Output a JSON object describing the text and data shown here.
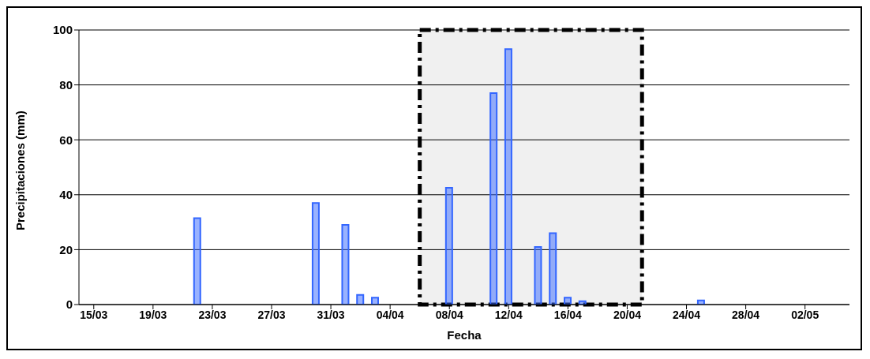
{
  "chart_data": {
    "type": "bar",
    "xlabel": "Fecha",
    "ylabel": "Precipitaciones (mm)",
    "x": [
      "--03-15",
      "--03-16",
      "--03-17",
      "--03-18",
      "--03-19",
      "--03-20",
      "--03-21",
      "--03-22",
      "--03-23",
      "--03-24",
      "--03-25",
      "--03-26",
      "--03-27",
      "--03-28",
      "--03-29",
      "--03-30",
      "--03-31",
      "--04-01",
      "--04-02",
      "--04-03",
      "--04-04",
      "--04-05",
      "--04-06",
      "--04-07",
      "--04-08",
      "--04-09",
      "--04-10",
      "--04-11",
      "--04-12",
      "--04-13",
      "--04-14",
      "--04-15",
      "--04-16",
      "--04-17",
      "--04-18",
      "--04-19",
      "--04-20",
      "--04-21",
      "--04-22",
      "--04-23",
      "--04-24",
      "--04-25",
      "--04-26",
      "--04-27",
      "--04-28",
      "--04-29",
      "--04-30",
      "--05-01",
      "--05-02"
    ],
    "series": [
      {
        "color": "#3366ff",
        "values": [
          0,
          0,
          null,
          0,
          null,
          0,
          null,
          31.5,
          null,
          0,
          null,
          null,
          0,
          null,
          null,
          37,
          null,
          29,
          3.5,
          2.5,
          0,
          null,
          0,
          0,
          42.5,
          null,
          0,
          77,
          93,
          0,
          21,
          26,
          2.5,
          1.2,
          null,
          0,
          null,
          0,
          0,
          0,
          0,
          1.5,
          null,
          0,
          0,
          null,
          null,
          0,
          0
        ]
      }
    ],
    "xlim": [
      "--03-14",
      "--05-05"
    ],
    "xticks": [
      {
        "value": "--03-15",
        "label": "15/03"
      },
      {
        "value": "--03-19",
        "label": "19/03"
      },
      {
        "value": "--03-23",
        "label": "23/03"
      },
      {
        "value": "--03-27",
        "label": "27/03"
      },
      {
        "value": "--03-31",
        "label": "31/03"
      },
      {
        "value": "--04-04",
        "label": "04/04"
      },
      {
        "value": "--04-08",
        "label": "08/04"
      },
      {
        "value": "--04-12",
        "label": "12/04"
      },
      {
        "value": "--04-16",
        "label": "16/04"
      },
      {
        "value": "--04-20",
        "label": "20/04"
      },
      {
        "value": "--04-24",
        "label": "24/04"
      },
      {
        "value": "--04-28",
        "label": "28/04"
      },
      {
        "value": "--05-02",
        "label": "02/05"
      }
    ],
    "ylim": [
      0,
      100
    ],
    "yticks": [
      0,
      20,
      40,
      60,
      80,
      100
    ],
    "grid": "y",
    "bands": [
      {
        "axis": "x",
        "from": "--04-06",
        "to": "--04-21",
        "color": "#000000"
      }
    ]
  }
}
